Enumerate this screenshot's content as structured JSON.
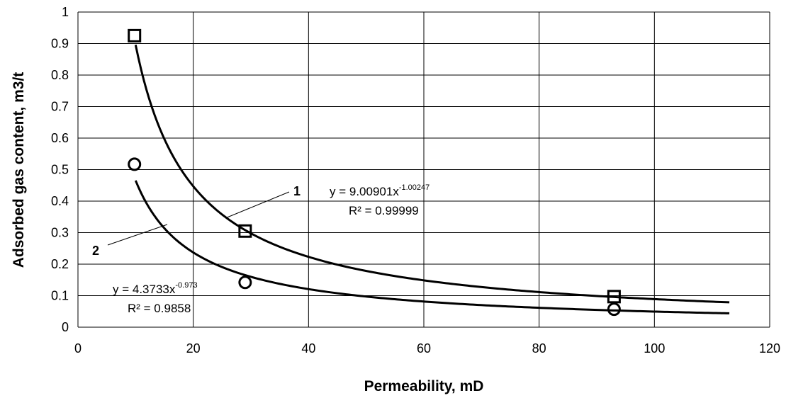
{
  "chart_data": {
    "type": "scatter",
    "xlabel": "Permeability, mD",
    "ylabel": "Adsorbed gas content, m3/t",
    "xlim": [
      0,
      120
    ],
    "ylim": [
      0,
      1
    ],
    "x_ticks": [
      "0",
      "20",
      "40",
      "60",
      "80",
      "100",
      "120"
    ],
    "y_ticks": [
      "0",
      "0.1",
      "0.2",
      "0.3",
      "0.4",
      "0.5",
      "0.6",
      "0.7",
      "0.8",
      "0.9",
      "1"
    ],
    "grid": true,
    "series": [
      {
        "marker": "square",
        "x": [
          9.8,
          29.0,
          93.0
        ],
        "y": [
          0.925,
          0.305,
          0.097
        ],
        "trendline": {
          "type": "power",
          "a": 9.00901,
          "b": -1.00247,
          "x_range": [
            10,
            113
          ]
        },
        "curve_label": "1",
        "equation": {
          "base": "y = 9.00901x",
          "exponent": "-1.00247",
          "r2": "R² = 0.99999"
        }
      },
      {
        "marker": "circle",
        "x": [
          9.8,
          29.0,
          93.0
        ],
        "y": [
          0.517,
          0.142,
          0.057
        ],
        "trendline": {
          "type": "power",
          "a": 4.3733,
          "b": -0.973,
          "x_range": [
            10,
            113
          ]
        },
        "curve_label": "2",
        "equation": {
          "base": "y = 4.3733x",
          "exponent": "-0.973",
          "r2": "R² = 0.9858"
        }
      }
    ]
  }
}
